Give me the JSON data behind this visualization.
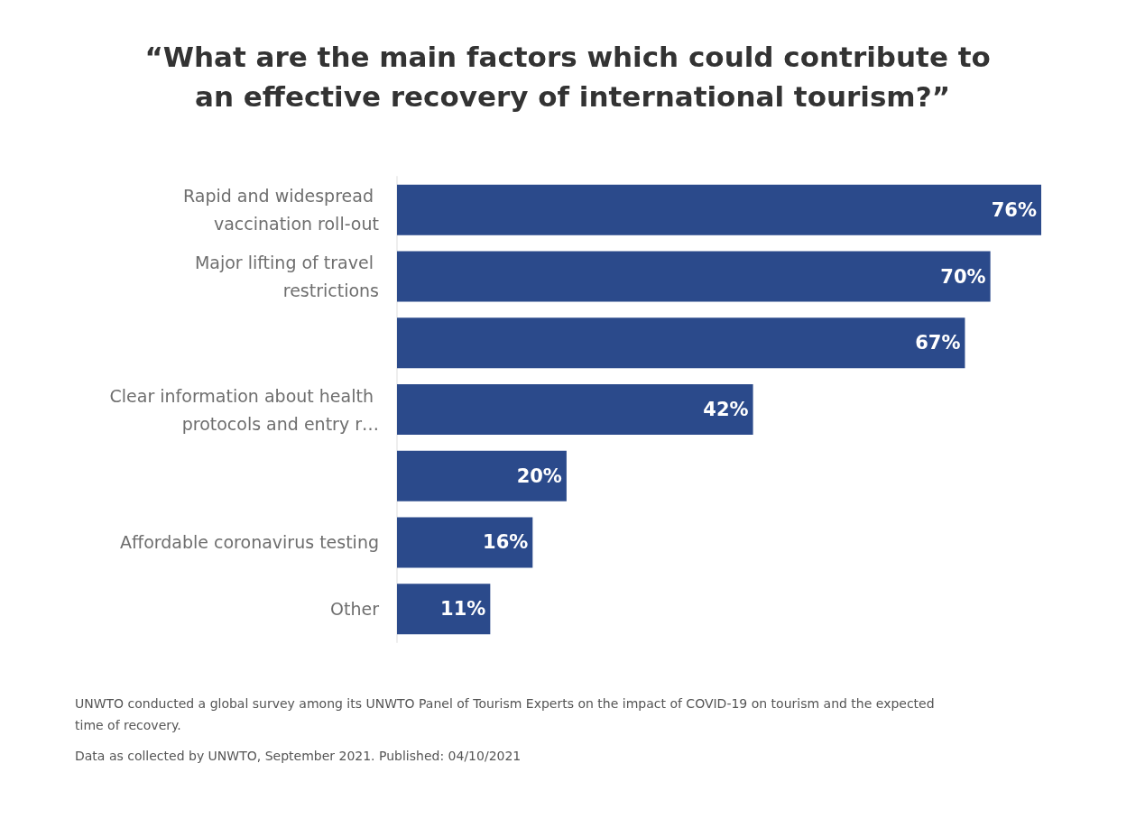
{
  "chart_data": {
    "type": "bar",
    "orientation": "horizontal",
    "tick_labels": "y",
    "title": "“What are the main factors which could contribute to an effective recovery of international tourism?”",
    "categories": [
      "Rapid and widespread vaccination roll-out",
      "Major lifting of travel restrictions",
      null,
      "Clear information about health protocols and entry r…",
      null,
      "Affordable coronavirus testing",
      "Other"
    ],
    "values": [
      76,
      70,
      67,
      42,
      20,
      16,
      11
    ],
    "color": "#2b4a8b",
    "data_labels": true,
    "value_labels": [
      "76%",
      "70%",
      "67%",
      "42%",
      "20%",
      "16%",
      "11%"
    ],
    "annotations": [
      "UNWTO conducted a global survey among its UNWTO Panel of Tourism Experts on the impact of COVID-19 on tourism and the expected time of recovery.",
      "Data as collected by UNWTO, September 2021. Published: 04/10/2021"
    ]
  }
}
